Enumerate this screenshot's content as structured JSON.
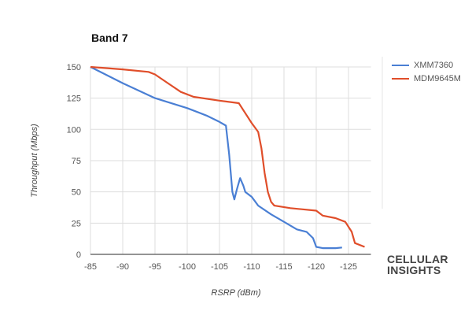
{
  "title": "Band 7",
  "brand": {
    "line1": "CELLULAR",
    "line2": "INSIGHTS"
  },
  "chart_data": {
    "type": "line",
    "title": "Band 7",
    "xlabel": "RSRP (dBm)",
    "ylabel": "Throughput (Mbps)",
    "xlim": [
      -85,
      -127.5
    ],
    "ylim": [
      0,
      150
    ],
    "x_ticks": [
      -85,
      -90,
      -95,
      -100,
      -105,
      -110,
      -115,
      -120,
      -125
    ],
    "y_ticks": [
      0,
      25,
      50,
      75,
      100,
      125,
      150
    ],
    "grid": true,
    "legend_position": "right",
    "series": [
      {
        "name": "XMM7360",
        "color": "#4a7fd4",
        "points": [
          [
            -85,
            150
          ],
          [
            -90,
            137
          ],
          [
            -95,
            125
          ],
          [
            -100,
            117
          ],
          [
            -103,
            111
          ],
          [
            -105,
            106
          ],
          [
            -106,
            103
          ],
          [
            -106.5,
            80
          ],
          [
            -107,
            50
          ],
          [
            -107.3,
            44
          ],
          [
            -107.7,
            52
          ],
          [
            -108.2,
            61
          ],
          [
            -108.7,
            55
          ],
          [
            -109,
            50
          ],
          [
            -110,
            46
          ],
          [
            -111,
            39
          ],
          [
            -113,
            32
          ],
          [
            -115,
            26
          ],
          [
            -117,
            20
          ],
          [
            -118.5,
            18
          ],
          [
            -119.5,
            13
          ],
          [
            -120,
            6
          ],
          [
            -121,
            5
          ],
          [
            -123,
            5
          ],
          [
            -124,
            5.5
          ]
        ]
      },
      {
        "name": "MDM9645M",
        "color": "#e04e2a",
        "points": [
          [
            -85,
            150
          ],
          [
            -90,
            148
          ],
          [
            -94,
            146
          ],
          [
            -95,
            144
          ],
          [
            -97,
            137
          ],
          [
            -99,
            130
          ],
          [
            -101,
            126
          ],
          [
            -105,
            123
          ],
          [
            -108,
            121
          ],
          [
            -109,
            113
          ],
          [
            -110,
            105
          ],
          [
            -111,
            98
          ],
          [
            -111.5,
            85
          ],
          [
            -112,
            65
          ],
          [
            -112.5,
            50
          ],
          [
            -113,
            42
          ],
          [
            -113.5,
            39
          ],
          [
            -116,
            37
          ],
          [
            -120,
            35
          ],
          [
            -121,
            31
          ],
          [
            -123,
            29
          ],
          [
            -124.5,
            26
          ],
          [
            -125.5,
            18
          ],
          [
            -126,
            9
          ],
          [
            -127.5,
            6
          ]
        ]
      }
    ]
  }
}
